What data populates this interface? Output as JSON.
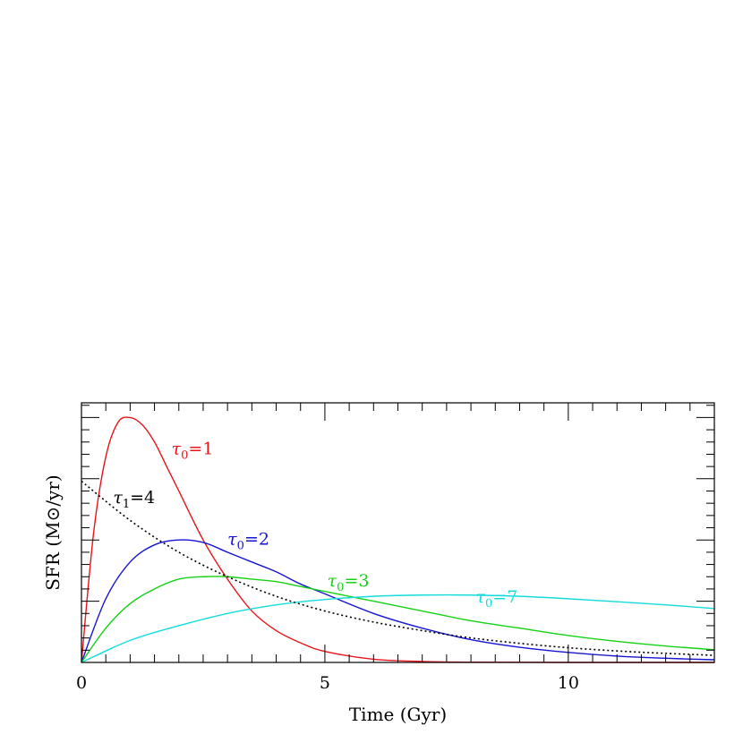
{
  "chart_data": {
    "type": "line",
    "xlabel": "Time (Gyr)",
    "ylabel": "SFR (M⊙/yr)",
    "xlim": [
      0,
      13
    ],
    "ylim": [
      0,
      1.06
    ],
    "xticks": [
      0,
      5,
      10
    ],
    "xtick_labels": [
      "0",
      "5",
      "10"
    ],
    "yticks_labeled": false,
    "grid": false,
    "legend": "none",
    "series": [
      {
        "name": "τ0=1",
        "label_parts": {
          "greek": "τ",
          "sub": "0",
          "rest": "=1"
        },
        "color": "#e8141a",
        "style": "solid",
        "x": [
          0,
          0.25,
          0.5,
          0.75,
          1,
          1.25,
          1.5,
          1.75,
          2,
          2.5,
          3,
          3.5,
          4,
          4.5,
          5,
          6,
          7,
          8,
          10,
          13
        ],
        "y": [
          0,
          0.53,
          0.84,
          0.98,
          1.0,
          0.97,
          0.9,
          0.8,
          0.7,
          0.5,
          0.34,
          0.21,
          0.13,
          0.08,
          0.045,
          0.013,
          0.004,
          0.001,
          0.0,
          0.0
        ]
      },
      {
        "name": "τ0=2",
        "label_parts": {
          "greek": "τ",
          "sub": "0",
          "rest": "=2"
        },
        "color": "#1414d2",
        "style": "solid",
        "x": [
          0,
          0.5,
          1,
          1.5,
          2,
          2.5,
          3,
          3.5,
          4,
          4.5,
          5,
          6,
          7,
          8,
          9,
          10,
          11,
          12,
          13
        ],
        "y": [
          0,
          0.26,
          0.41,
          0.48,
          0.5,
          0.49,
          0.45,
          0.41,
          0.37,
          0.32,
          0.28,
          0.2,
          0.14,
          0.093,
          0.062,
          0.041,
          0.026,
          0.017,
          0.011
        ]
      },
      {
        "name": "τ0=3",
        "label_parts": {
          "greek": "τ",
          "sub": "0",
          "rest": "=3"
        },
        "color": "#14d214",
        "style": "solid",
        "x": [
          0,
          0.5,
          1,
          1.5,
          2,
          2.5,
          3,
          3.5,
          4,
          4.5,
          5,
          6,
          7,
          8,
          9,
          10,
          11,
          12,
          13
        ],
        "y": [
          0,
          0.14,
          0.24,
          0.3,
          0.34,
          0.35,
          0.35,
          0.34,
          0.33,
          0.31,
          0.29,
          0.25,
          0.21,
          0.17,
          0.14,
          0.11,
          0.086,
          0.067,
          0.052
        ]
      },
      {
        "name": "τ0=7",
        "label_parts": {
          "greek": "τ",
          "sub": "0",
          "rest": "=7"
        },
        "color": "#14dcdc",
        "style": "solid",
        "x": [
          0,
          1,
          2,
          3,
          4,
          5,
          6,
          7,
          8,
          9,
          10,
          11,
          12,
          13
        ],
        "y": [
          0,
          0.09,
          0.15,
          0.2,
          0.235,
          0.257,
          0.27,
          0.275,
          0.275,
          0.27,
          0.26,
          0.248,
          0.235,
          0.22
        ]
      },
      {
        "name": "τ1=4",
        "label_parts": {
          "greek": "τ",
          "sub": "1",
          "rest": "=4"
        },
        "color": "#000000",
        "style": "dotted",
        "x": [
          0,
          1,
          2,
          3,
          4,
          5,
          6,
          7,
          8,
          9,
          10,
          11,
          12,
          13
        ],
        "y": [
          0.74,
          0.58,
          0.45,
          0.35,
          0.27,
          0.21,
          0.165,
          0.13,
          0.1,
          0.078,
          0.06,
          0.047,
          0.037,
          0.029
        ]
      }
    ],
    "annotations": [
      {
        "series": 0,
        "at": [
          1.85,
          0.85
        ]
      },
      {
        "series": 4,
        "at": [
          0.65,
          0.65
        ]
      },
      {
        "series": 1,
        "at": [
          3.0,
          0.48
        ]
      },
      {
        "series": 2,
        "at": [
          5.05,
          0.31
        ]
      },
      {
        "series": 3,
        "at": [
          8.1,
          0.245
        ]
      }
    ]
  }
}
